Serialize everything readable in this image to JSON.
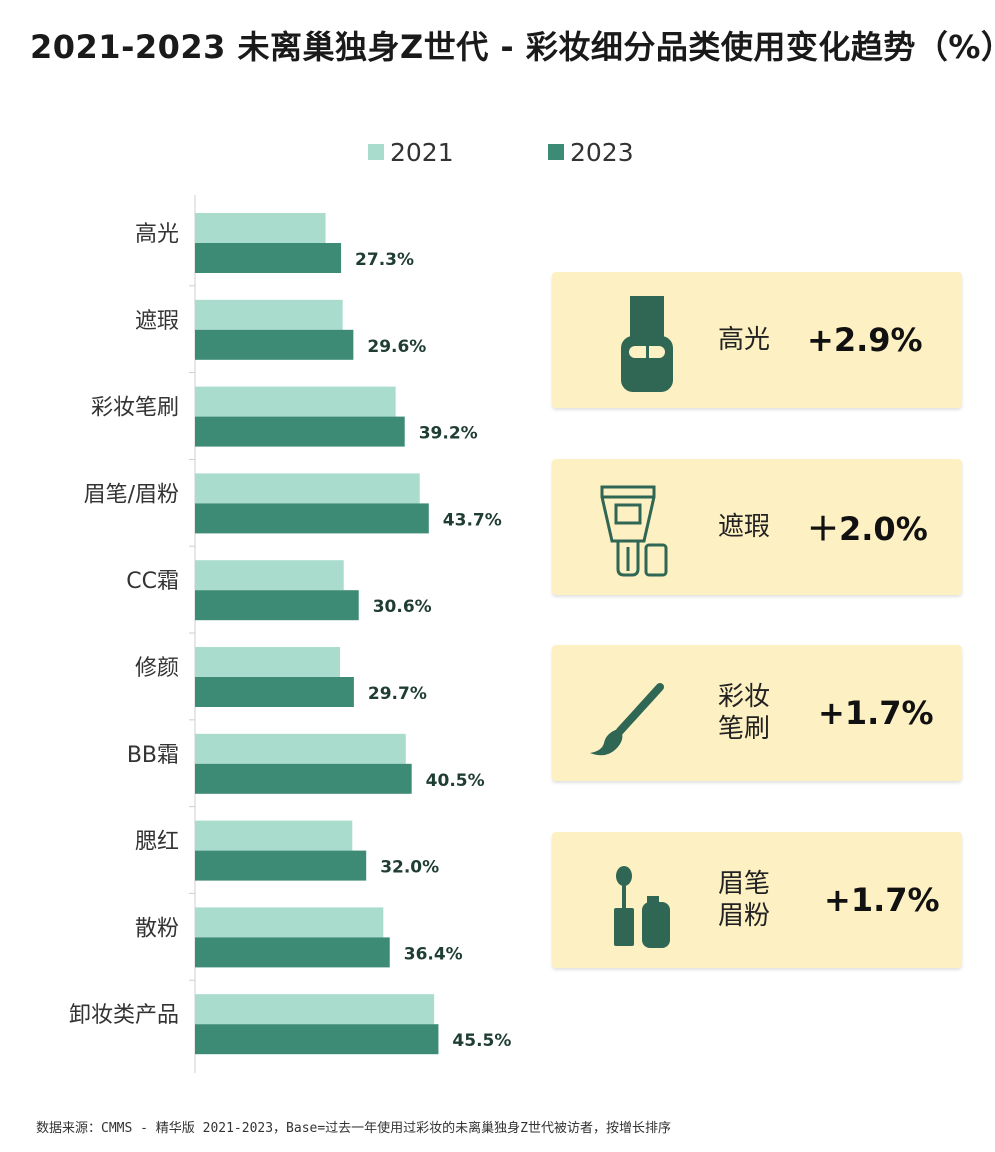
{
  "title": "2021-2023 未离巢独身Z世代 - 彩妆细分品类使用变化趋势（%）",
  "legend": {
    "series_2021": "2021",
    "series_2023": "2023"
  },
  "colors": {
    "series_2021": "#a9dccd",
    "series_2023": "#3d8b75",
    "card_bg": "#fdf0c2",
    "icon": "#2f6654"
  },
  "chart_data": {
    "type": "bar",
    "orientation": "horizontal",
    "categories": [
      "高光",
      "遮瑕",
      "彩妆笔刷",
      "眉笔/眉粉",
      "CC霜",
      "修颜",
      "BB霜",
      "腮红",
      "散粉",
      "卸妆类产品"
    ],
    "series": [
      {
        "name": "2021",
        "values": [
          24.4,
          27.6,
          37.5,
          42.0,
          27.8,
          27.1,
          39.4,
          29.4,
          35.2,
          44.7
        ],
        "labels_shown": false
      },
      {
        "name": "2023",
        "values": [
          27.3,
          29.6,
          39.2,
          43.7,
          30.6,
          29.7,
          40.5,
          32.0,
          36.4,
          45.5
        ],
        "labels_shown": true
      }
    ],
    "data_labels": [
      "27.3%",
      "29.6%",
      "39.2%",
      "43.7%",
      "30.6%",
      "29.7%",
      "40.5%",
      "32.0%",
      "36.4%",
      "45.5%"
    ],
    "xlim": [
      0,
      100
    ],
    "grid": false,
    "legend_position": "top-center"
  },
  "highlights": [
    {
      "label": "高光",
      "value": "+2.9%",
      "icon": "highlighter-icon"
    },
    {
      "label": "遮瑕",
      "value": "＋2.0%",
      "icon": "concealer-tube-icon"
    },
    {
      "label": "彩妆笔刷",
      "label_lines": [
        "彩妆",
        "笔刷"
      ],
      "value": "+1.7%",
      "icon": "makeup-brush-icon"
    },
    {
      "label": "眉笔眉粉",
      "label_lines": [
        "眉笔",
        "眉粉"
      ],
      "value": "+1.7%",
      "icon": "brow-products-icon"
    }
  ],
  "source": "数据来源：CMMS - 精华版 2021-2023，Base=过去一年使用过彩妆的未离巢独身Z世代被访者，按增长排序"
}
